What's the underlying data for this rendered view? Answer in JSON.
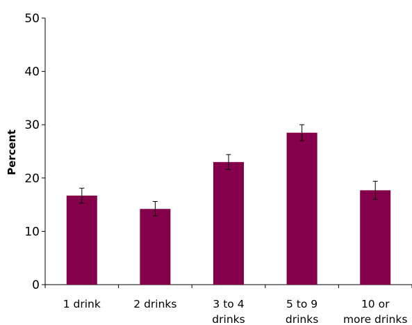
{
  "chart_data": {
    "type": "bar",
    "title": "",
    "xlabel": "",
    "ylabel": "Percent",
    "ylim": [
      0,
      50
    ],
    "yticks": [
      0,
      10,
      20,
      30,
      40,
      50
    ],
    "grid": false,
    "legend": "none",
    "bar_color": "#85004b",
    "categories": [
      [
        "1 drink"
      ],
      [
        "2 drinks"
      ],
      [
        "3 to 4",
        "drinks"
      ],
      [
        "5 to 9",
        "drinks"
      ],
      [
        "10 or",
        "more drinks"
      ]
    ],
    "series": [
      {
        "values": [
          16.7,
          14.2,
          23.0,
          28.5,
          17.7
        ],
        "error_low": [
          15.3,
          12.9,
          21.6,
          27.0,
          16.0
        ],
        "error_high": [
          18.1,
          15.6,
          24.4,
          30.0,
          19.4
        ]
      }
    ]
  }
}
